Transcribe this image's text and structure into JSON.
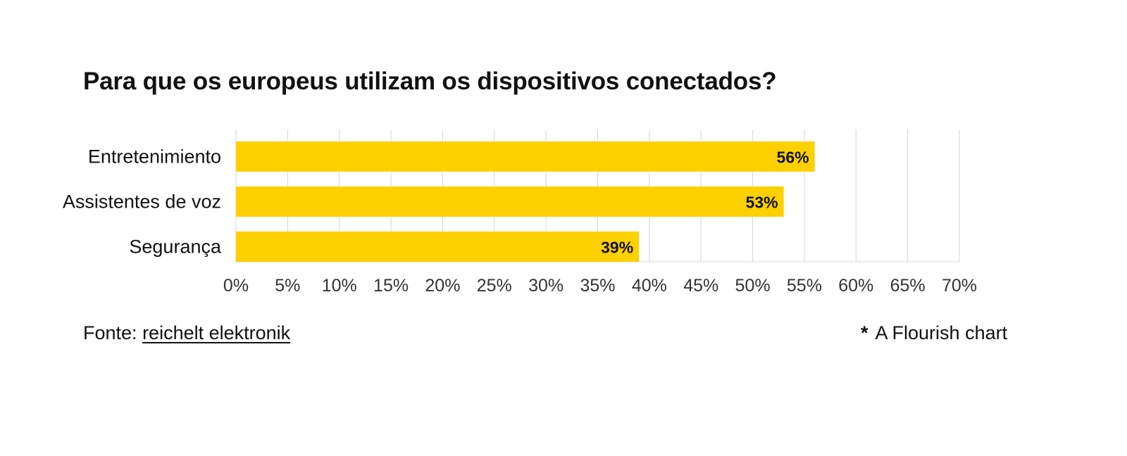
{
  "title": "Para que os europeus utilizam os dispositivos conectados?",
  "source": {
    "prefix": "Fonte:",
    "link_text": "reichelt elektronik"
  },
  "credit": {
    "star": "*",
    "text": "A Flourish chart"
  },
  "colors": {
    "bar": "#FDD000",
    "grid": "#d6d6d6",
    "axis_text": "#333333",
    "label_text": "#111111"
  },
  "chart_data": {
    "type": "bar",
    "orientation": "horizontal",
    "categories": [
      "Entretenimiento",
      "Assistentes de voz",
      "Segurança"
    ],
    "values": [
      56,
      53,
      39
    ],
    "data_labels": [
      "56%",
      "53%",
      "39%"
    ],
    "xlim": [
      0,
      70
    ],
    "xticks": [
      0,
      5,
      10,
      15,
      20,
      25,
      30,
      35,
      40,
      45,
      50,
      55,
      60,
      65,
      70
    ],
    "xtick_labels": [
      "0%",
      "5%",
      "10%",
      "15%",
      "20%",
      "25%",
      "30%",
      "35%",
      "40%",
      "45%",
      "50%",
      "55%",
      "60%",
      "65%",
      "70%"
    ],
    "grid": true,
    "legend": "none"
  }
}
